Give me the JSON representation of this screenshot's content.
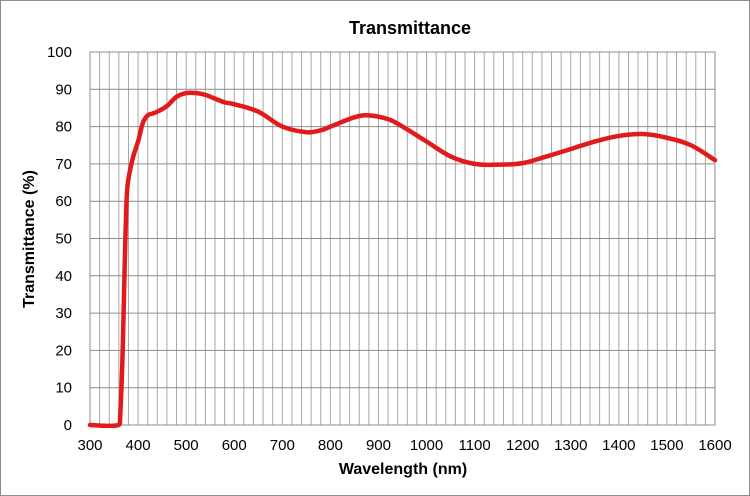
{
  "chart_data": {
    "type": "line",
    "title": "Transmittance",
    "xlabel": "Wavelength (nm)",
    "ylabel": "Transmittance (%)",
    "xlim": [
      300,
      1600
    ],
    "ylim": [
      0,
      100
    ],
    "x_ticks": [
      300,
      400,
      500,
      600,
      700,
      800,
      900,
      1000,
      1100,
      1200,
      1300,
      1400,
      1500,
      1600
    ],
    "x_tick_labels": [
      "300",
      "400",
      "500",
      "600",
      "700",
      "800",
      "900",
      "1000",
      "1100",
      "1200",
      "1300",
      "1400",
      "1500",
      "1600"
    ],
    "y_ticks": [
      0,
      10,
      20,
      30,
      40,
      50,
      60,
      70,
      80,
      90,
      100
    ],
    "y_tick_labels": [
      "0",
      "10",
      "20",
      "30",
      "40",
      "50",
      "60",
      "70",
      "80",
      "90",
      "100"
    ],
    "x_minor_step": 20,
    "grid": true,
    "legend": "none",
    "line_color": "#e31a1c",
    "series": [
      {
        "x": [
          300,
          360,
          363,
          368,
          372,
          376,
          380,
          390,
          400,
          410,
          420,
          430,
          440,
          460,
          480,
          500,
          520,
          540,
          560,
          580,
          600,
          650,
          700,
          750,
          780,
          800,
          850,
          880,
          920,
          950,
          1000,
          1050,
          1100,
          1150,
          1200,
          1250,
          1300,
          1350,
          1400,
          1450,
          1500,
          1550,
          1600
        ],
        "y": [
          0,
          0,
          3,
          20,
          42,
          60,
          66,
          72,
          76,
          81,
          83,
          83.5,
          84,
          85.5,
          88,
          89,
          89,
          88.5,
          87.5,
          86.5,
          86,
          84,
          80,
          78.5,
          79,
          80,
          82.5,
          83,
          82,
          80,
          76,
          72,
          70,
          69.8,
          70.2,
          72,
          74,
          76,
          77.5,
          78,
          77,
          75,
          71
        ]
      }
    ]
  }
}
